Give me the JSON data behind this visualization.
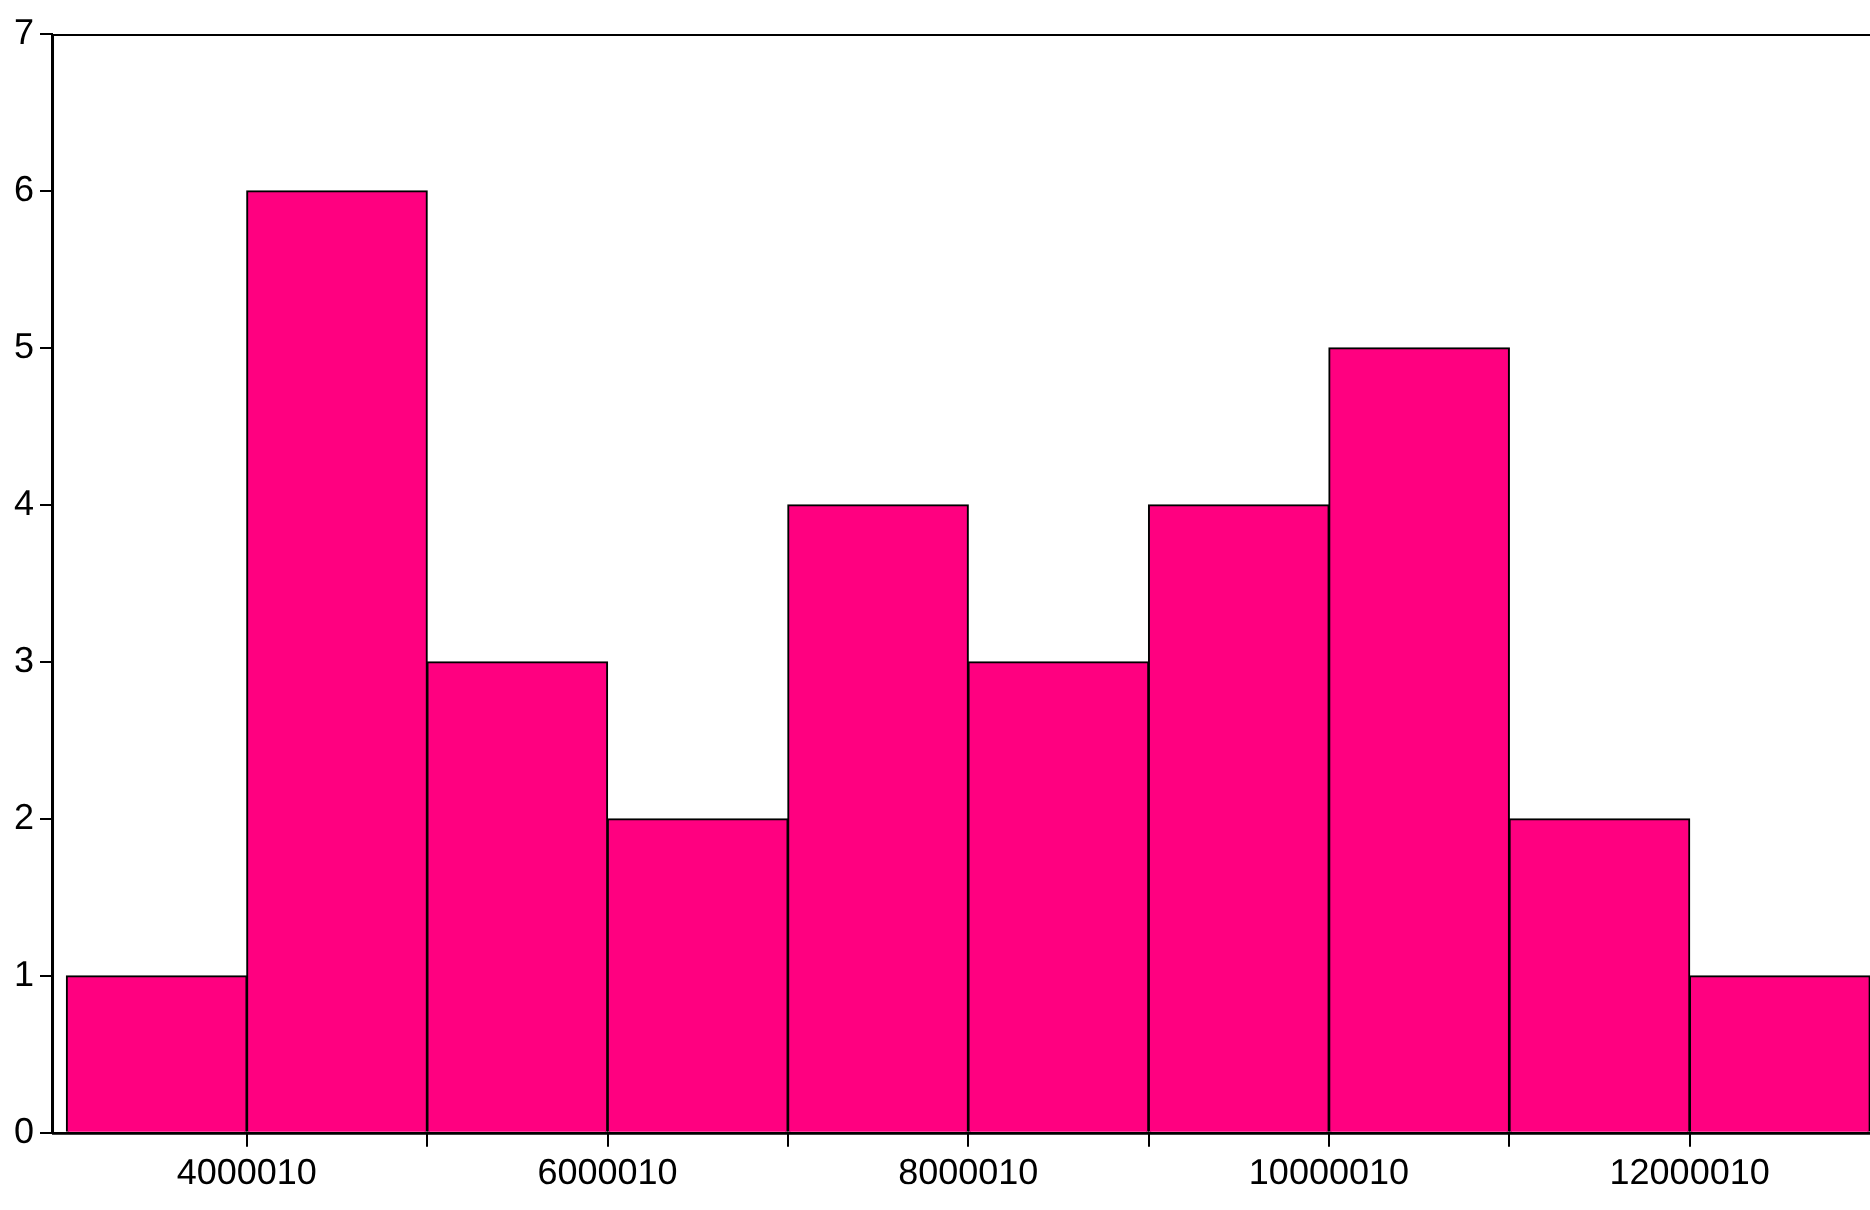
{
  "chart_data": {
    "type": "histogram",
    "bins": [
      3000010,
      4000010,
      5000010,
      6000010,
      7000010,
      8000010,
      9000010,
      10000010,
      11000010,
      12000010,
      13000010
    ],
    "values": [
      1,
      6,
      3,
      2,
      4,
      3,
      4,
      5,
      2,
      1
    ],
    "color": "#ff0080",
    "xlim": [
      2920010,
      13000010
    ],
    "xticks": [
      4000010,
      {
        "value": 5000010,
        "label": null
      },
      6000010,
      {
        "value": 7000010,
        "label": null
      },
      8000010,
      {
        "value": 9000010,
        "label": null
      },
      10000010,
      {
        "value": 11000010,
        "label": null
      },
      12000010
    ],
    "ylim": [
      0,
      7
    ],
    "yticks": [
      0,
      1,
      2,
      3,
      4,
      5,
      6,
      7
    ],
    "grid": false,
    "legend": false
  }
}
